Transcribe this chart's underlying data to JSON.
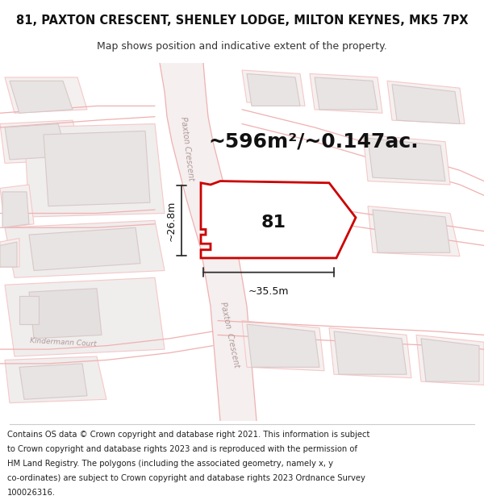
{
  "title": "81, PAXTON CRESCENT, SHENLEY LODGE, MILTON KEYNES, MK5 7PX",
  "subtitle": "Map shows position and indicative extent of the property.",
  "area_text": "~596m²/~0.147ac.",
  "label": "81",
  "dim_width": "~35.5m",
  "dim_height": "~26.8m",
  "copyright_text": "Contains OS data © Crown copyright and database right 2021. This information is subject to Crown copyright and database rights 2023 and is reproduced with the permission of HM Land Registry. The polygons (including the associated geometry, namely x, y co-ordinates) are subject to Crown copyright and database rights 2023 Ordnance Survey 100026316.",
  "map_bg": "#fafafa",
  "road_line_color": "#f0b0b0",
  "road_fill_color": "#f8e8e8",
  "building_fill": "#e8e4e4",
  "building_edge": "#d8c8c8",
  "plot_line_color": "#f5c8c8",
  "highlight_color": "#cc0000",
  "highlight_fill": "#ffffff",
  "dim_color": "#303030",
  "street_color": "#b09898",
  "title_fs": 10.5,
  "subtitle_fs": 9,
  "area_fs": 18,
  "label_fs": 16,
  "dim_fs": 9,
  "copy_fs": 7.2
}
